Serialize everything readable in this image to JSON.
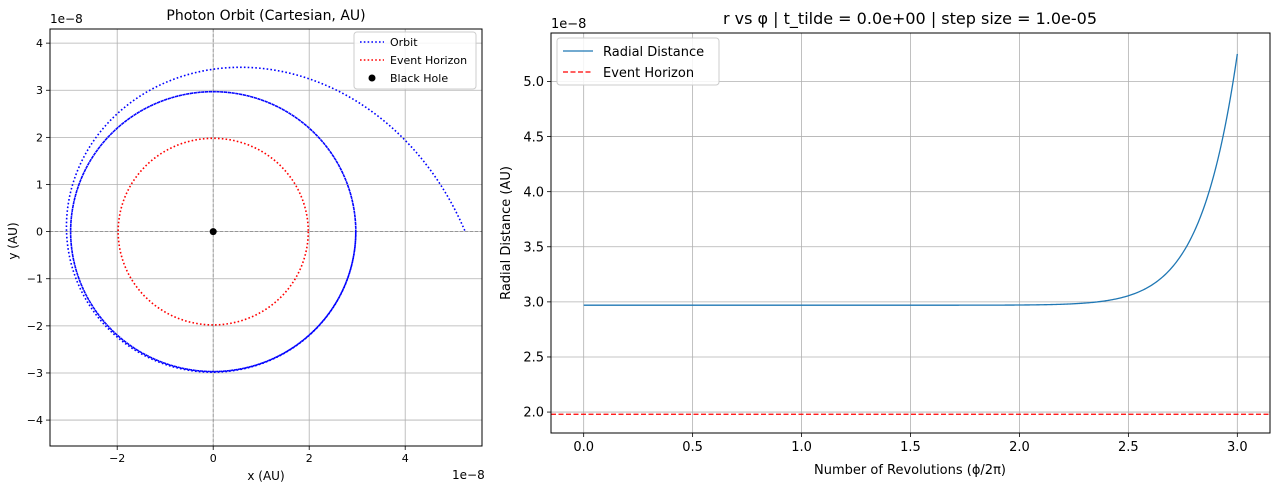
{
  "chart_data": [
    {
      "type": "scatter",
      "title": "Photon Orbit (Cartesian, AU)",
      "xlabel": "x (AU)",
      "ylabel": "y (AU)",
      "x_offset_text": "1e−8",
      "y_offset_text": "1e−8",
      "xlim": [
        -3.4,
        5.6
      ],
      "ylim": [
        -4.55,
        4.3
      ],
      "xticks": [
        -2,
        0,
        2,
        4
      ],
      "xtick_labels": [
        "−2",
        "0",
        "2",
        "4"
      ],
      "yticks": [
        -4,
        -3,
        -2,
        -1,
        0,
        1,
        2,
        3,
        4
      ],
      "ytick_labels": [
        "−4",
        "−3",
        "−2",
        "−1",
        "0",
        "1",
        "2",
        "3",
        "4"
      ],
      "grid": true,
      "legend_position": "top-right",
      "colors": {
        "orbit": "#0000ff",
        "horizon": "#ff0000",
        "black_hole": "#000000",
        "crosshair": "#808080"
      },
      "series": [
        {
          "name": "Orbit",
          "kind": "spiral",
          "r_start": 2.97,
          "r_end": 5.25,
          "revolutions": 3.0,
          "growth_power": 18
        },
        {
          "name": "Event Horizon",
          "kind": "circle",
          "radius": 1.98
        },
        {
          "name": "Black Hole",
          "kind": "point",
          "x": 0,
          "y": 0
        }
      ]
    },
    {
      "type": "line",
      "title": "r vs φ | t_tilde = 0.0e+00 | step size = 1.0e-05",
      "xlabel": "Number of Revolutions (ϕ/2π)",
      "ylabel": "Radial Distance (AU)",
      "y_offset_text": "1e−8",
      "xlim": [
        -0.15,
        3.15
      ],
      "ylim": [
        1.81,
        5.44
      ],
      "xticks": [
        0,
        0.5,
        1,
        1.5,
        2,
        2.5,
        3
      ],
      "xtick_labels": [
        "0.0",
        "0.5",
        "1.0",
        "1.5",
        "2.0",
        "2.5",
        "3.0"
      ],
      "yticks": [
        2,
        2.5,
        3,
        3.5,
        4,
        4.5,
        5
      ],
      "ytick_labels": [
        "2.0",
        "2.5",
        "3.0",
        "3.5",
        "4.0",
        "4.5",
        "5.0"
      ],
      "grid": true,
      "legend_position": "top-left",
      "colors": {
        "radial": "#1f77b4",
        "horizon": "#ff0000"
      },
      "series": [
        {
          "name": "Radial Distance",
          "kind": "curve",
          "x_range": [
            0,
            3.0
          ],
          "y_start": 2.97,
          "y_end": 5.25,
          "growth_power": 18
        },
        {
          "name": "Event Horizon",
          "kind": "hline",
          "y": 1.98
        }
      ]
    }
  ]
}
